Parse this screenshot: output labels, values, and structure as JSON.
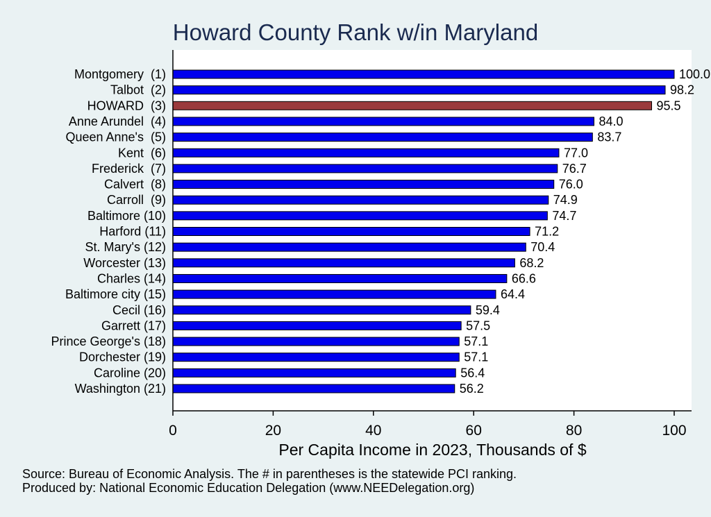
{
  "chart_data": {
    "type": "bar",
    "orientation": "horizontal",
    "title": "Howard County Rank w/in Maryland",
    "xlabel": "Per Capita Income in 2023, Thousands of $",
    "xlim": [
      0,
      100
    ],
    "xticks": [
      0,
      20,
      40,
      60,
      80,
      100
    ],
    "grid": false,
    "categories": [
      "Montgomery  (1)",
      "Talbot  (2)",
      "HOWARD  (3)",
      "Anne Arundel  (4)",
      "Queen Anne's  (5)",
      "Kent  (6)",
      "Frederick  (7)",
      "Calvert  (8)",
      "Carroll  (9)",
      "Baltimore (10)",
      "Harford (11)",
      "St. Mary's (12)",
      "Worcester (13)",
      "Charles (14)",
      "Baltimore city (15)",
      "Cecil (16)",
      "Garrett (17)",
      "Prince George's (18)",
      "Dorchester (19)",
      "Caroline (20)",
      "Washington (21)"
    ],
    "values": [
      100.0,
      98.2,
      95.5,
      84.0,
      83.7,
      77.0,
      76.7,
      76.0,
      74.9,
      74.7,
      71.2,
      70.4,
      68.2,
      66.6,
      64.4,
      59.4,
      57.5,
      57.1,
      57.1,
      56.4,
      56.2
    ],
    "value_labels": [
      "100.0",
      "98.2",
      "95.5",
      "84.0",
      "83.7",
      "77.0",
      "76.7",
      "76.0",
      "74.9",
      "74.7",
      "71.2",
      "70.4",
      "68.2",
      "66.6",
      "64.4",
      "59.4",
      "57.5",
      "57.1",
      "57.1",
      "56.4",
      "56.2"
    ],
    "highlight_index": 2,
    "colors": {
      "bar": "#0000ee",
      "highlight": "#9a3a3c",
      "title": "#1a2a4f",
      "plot_bg": "#ffffff",
      "page_bg": "#eaf2f3"
    },
    "notes": [
      "Source: Bureau of Economic Analysis. The # in parentheses is the statewide PCI ranking.",
      "Produced by: National Economic Education Delegation (www.NEEDelegation.org)"
    ]
  }
}
